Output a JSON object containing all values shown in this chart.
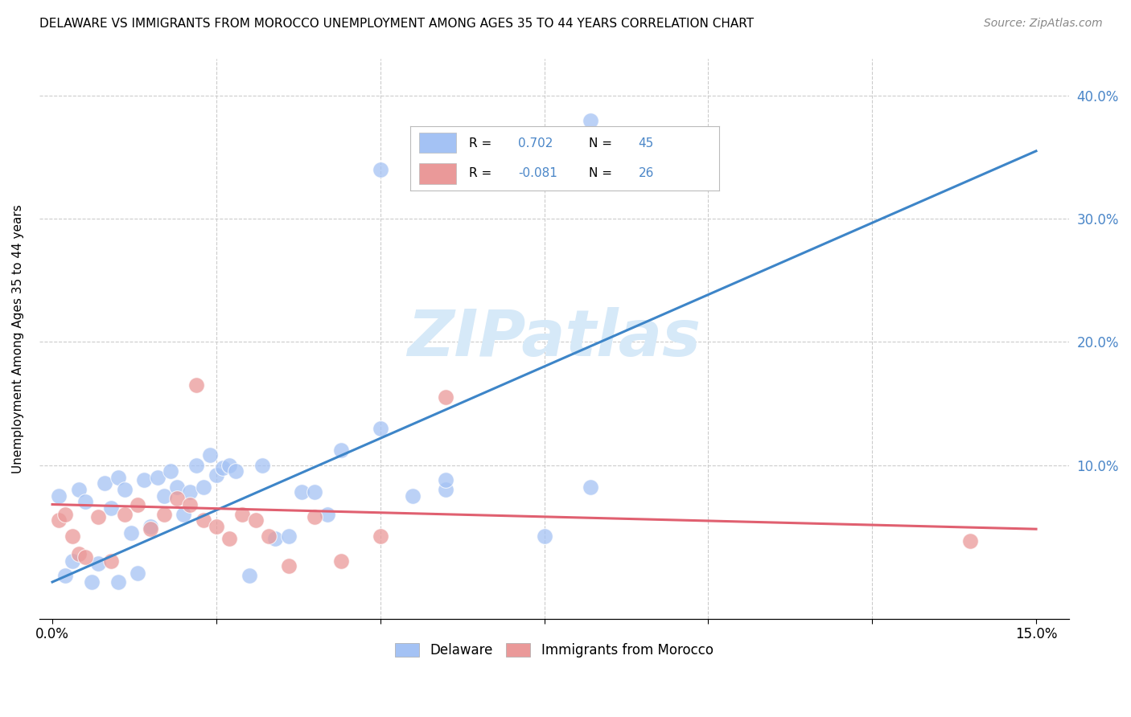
{
  "title": "DELAWARE VS IMMIGRANTS FROM MOROCCO UNEMPLOYMENT AMONG AGES 35 TO 44 YEARS CORRELATION CHART",
  "source": "Source: ZipAtlas.com",
  "ylabel": "Unemployment Among Ages 35 to 44 years",
  "xlim": [
    -0.002,
    0.155
  ],
  "ylim": [
    -0.025,
    0.43
  ],
  "xticks": [
    0.0,
    0.025,
    0.05,
    0.075,
    0.1,
    0.125,
    0.15
  ],
  "yticks": [
    0.1,
    0.2,
    0.3,
    0.4
  ],
  "delaware_R": 0.702,
  "delaware_N": 45,
  "morocco_R": -0.081,
  "morocco_N": 26,
  "delaware_color": "#a4c2f4",
  "morocco_color": "#ea9999",
  "delaware_line_color": "#3d85c8",
  "morocco_line_color": "#e06070",
  "right_label_color": "#4a86c8",
  "watermark": "ZIPatlas",
  "watermark_color": "#d6e9f8",
  "del_line_x0": 0.0,
  "del_line_y0": 0.005,
  "del_line_x1": 0.15,
  "del_line_y1": 0.355,
  "mor_line_x0": 0.0,
  "mor_line_y0": 0.068,
  "mor_line_x1": 0.15,
  "mor_line_y1": 0.048,
  "delaware_x": [
    0.001,
    0.002,
    0.003,
    0.004,
    0.005,
    0.006,
    0.007,
    0.008,
    0.009,
    0.01,
    0.01,
    0.011,
    0.012,
    0.013,
    0.014,
    0.015,
    0.016,
    0.017,
    0.018,
    0.019,
    0.02,
    0.021,
    0.022,
    0.023,
    0.024,
    0.025,
    0.026,
    0.027,
    0.028,
    0.03,
    0.032,
    0.034,
    0.036,
    0.038,
    0.04,
    0.042,
    0.044,
    0.05,
    0.055,
    0.06,
    0.075,
    0.082,
    0.05,
    0.082,
    0.06
  ],
  "delaware_y": [
    0.075,
    0.01,
    0.022,
    0.08,
    0.07,
    0.005,
    0.02,
    0.085,
    0.065,
    0.005,
    0.09,
    0.08,
    0.045,
    0.012,
    0.088,
    0.05,
    0.09,
    0.075,
    0.095,
    0.082,
    0.06,
    0.078,
    0.1,
    0.082,
    0.108,
    0.092,
    0.098,
    0.1,
    0.095,
    0.01,
    0.1,
    0.04,
    0.042,
    0.078,
    0.078,
    0.06,
    0.112,
    0.13,
    0.075,
    0.08,
    0.042,
    0.082,
    0.34,
    0.38,
    0.088
  ],
  "morocco_x": [
    0.001,
    0.002,
    0.003,
    0.004,
    0.005,
    0.007,
    0.009,
    0.011,
    0.013,
    0.015,
    0.017,
    0.019,
    0.021,
    0.023,
    0.025,
    0.027,
    0.029,
    0.031,
    0.033,
    0.036,
    0.04,
    0.044,
    0.05,
    0.06,
    0.14,
    0.022
  ],
  "morocco_y": [
    0.055,
    0.06,
    0.042,
    0.028,
    0.025,
    0.058,
    0.022,
    0.06,
    0.068,
    0.048,
    0.06,
    0.073,
    0.068,
    0.055,
    0.05,
    0.04,
    0.06,
    0.055,
    0.042,
    0.018,
    0.058,
    0.022,
    0.042,
    0.155,
    0.038,
    0.165
  ]
}
